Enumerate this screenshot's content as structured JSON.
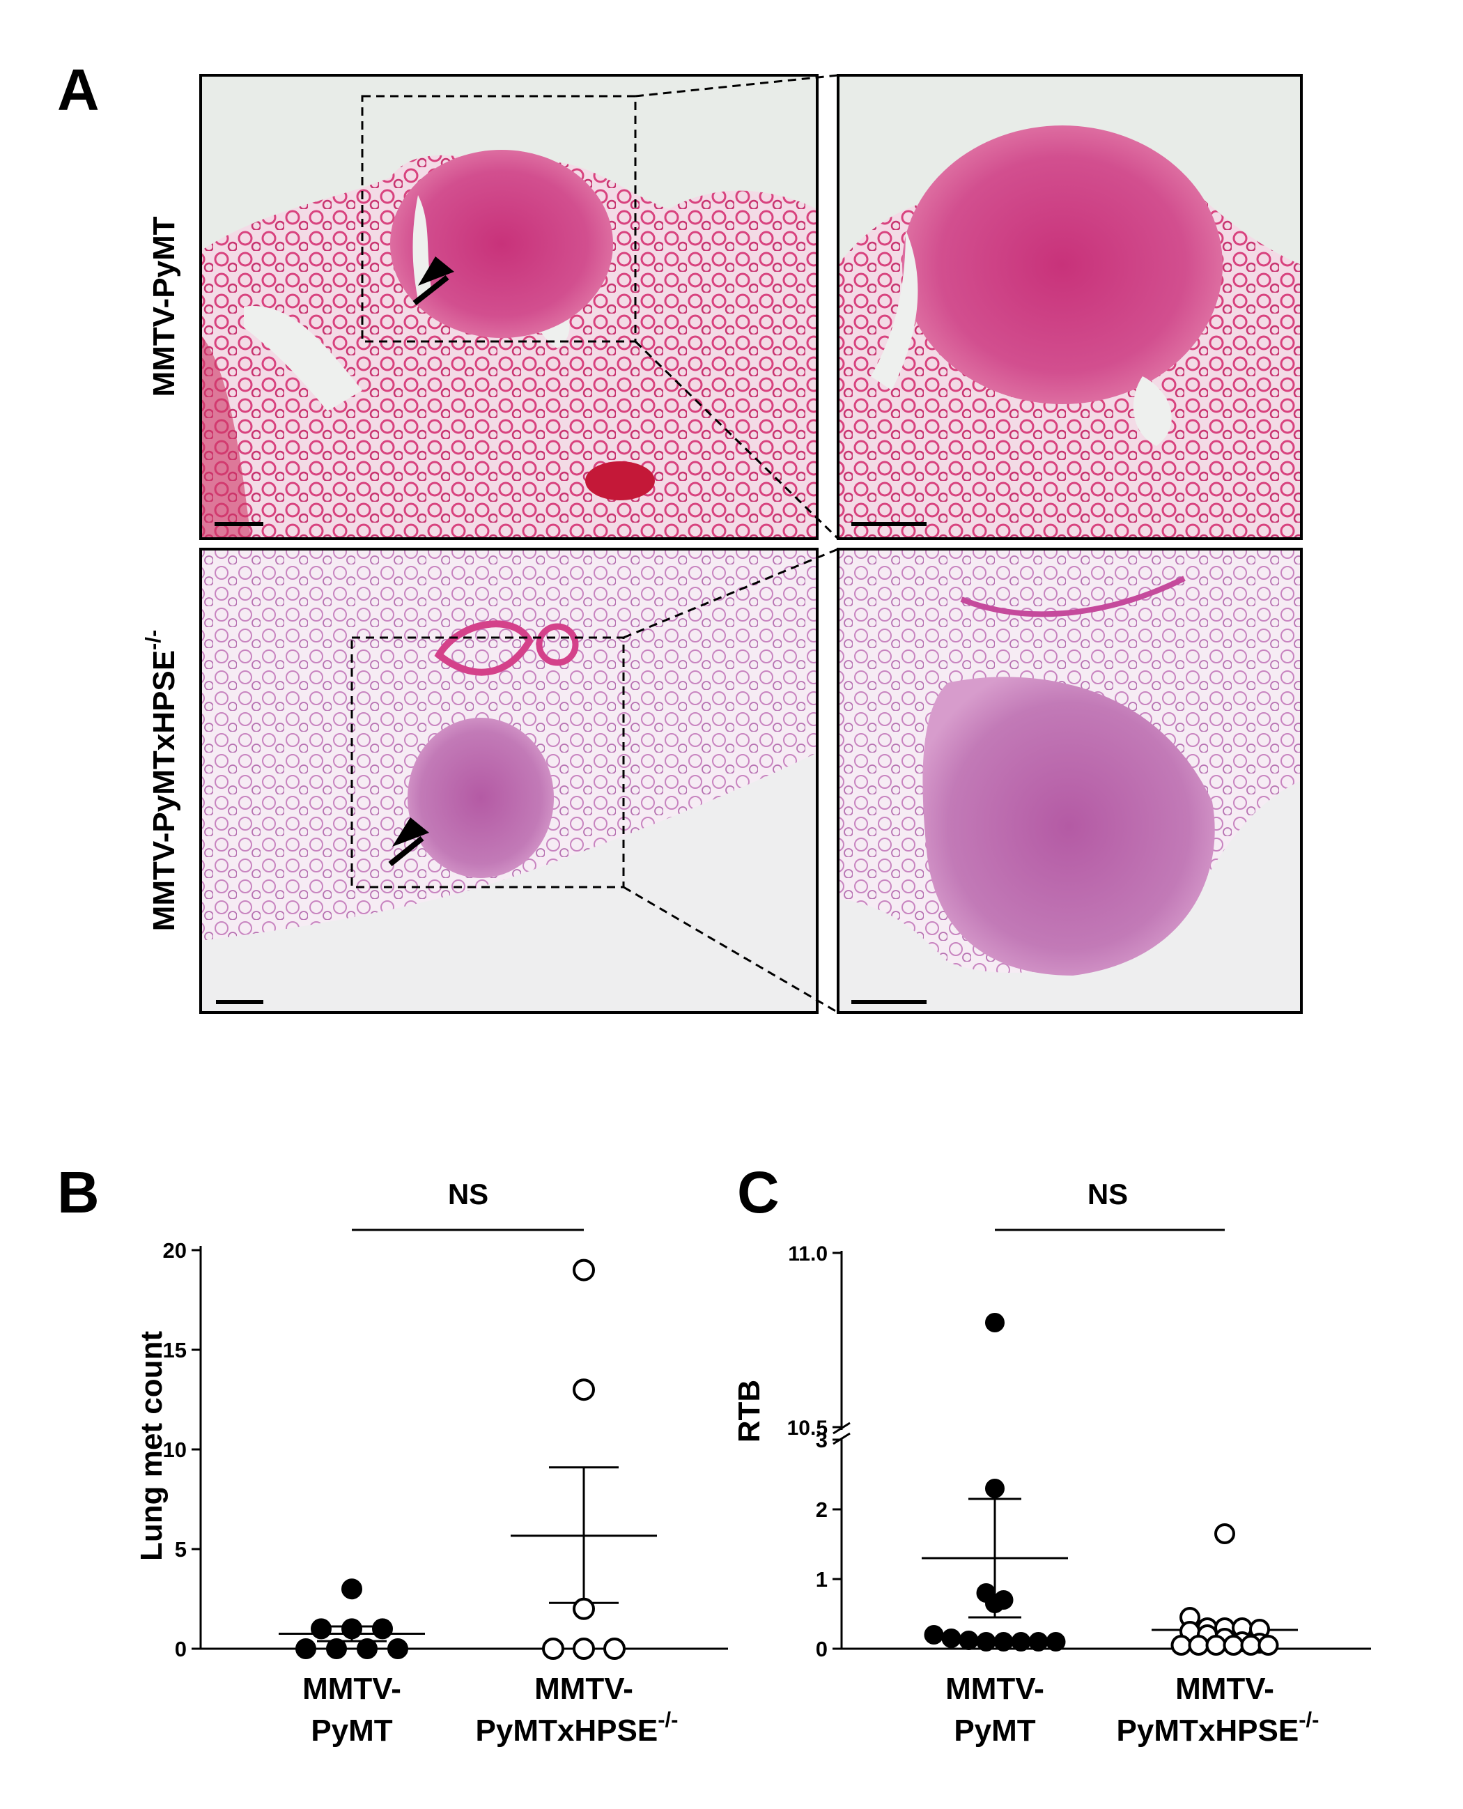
{
  "panel_a": {
    "label": "A",
    "row_labels": [
      "MMTV-PyMT",
      "MMTV-PyMTxHPSE",
      "-/-"
    ]
  },
  "panel_b": {
    "label": "B",
    "significance": "NS",
    "ylabel": "Lung met count",
    "yticks": [
      "0",
      "5",
      "10",
      "15",
      "20"
    ],
    "categories": [
      {
        "line1": "MMTV-",
        "line2": "PyMT",
        "sup": ""
      },
      {
        "line1": "MMTV-",
        "line2": "PyMTxHPSE",
        "sup": "-/-"
      }
    ]
  },
  "panel_c": {
    "label": "C",
    "significance": "NS",
    "ylabel": "RTB",
    "yticks_lower": [
      "0",
      "1",
      "2",
      "3"
    ],
    "yticks_upper": [
      "10.5",
      "11.0"
    ],
    "categories": [
      {
        "line1": "MMTV-",
        "line2": "PyMT",
        "sup": ""
      },
      {
        "line1": "MMTV-",
        "line2": "PyMTxHPSE",
        "sup": "-/-"
      }
    ]
  },
  "chart_data": [
    {
      "type": "scatter",
      "panel": "B",
      "title": "",
      "ylabel": "Lung met count",
      "ylim": [
        0,
        20
      ],
      "categories": [
        "MMTV-PyMT",
        "MMTV-PyMTxHPSE-/-"
      ],
      "series": [
        {
          "values": [
            3,
            1,
            1,
            1,
            0,
            0,
            0,
            0
          ],
          "mean": 0.75,
          "sem_low": 0.38,
          "sem_high": 1.12,
          "marker": "filled"
        },
        {
          "values": [
            19,
            13,
            2,
            0,
            0,
            0
          ],
          "mean": 5.67,
          "sem_low": 2.3,
          "sem_high": 9.1,
          "marker": "open"
        }
      ],
      "annotation": "NS"
    },
    {
      "type": "scatter",
      "panel": "C",
      "title": "",
      "ylabel": "RTB",
      "ylim": [
        0,
        11.0
      ],
      "axis_break": [
        3,
        10.5
      ],
      "categories": [
        "MMTV-PyMT",
        "MMTV-PyMTxHPSE-/-"
      ],
      "series": [
        {
          "values": [
            10.8,
            2.3,
            0.8,
            0.7,
            0.65,
            0.2,
            0.15,
            0.12,
            0.1,
            0.1,
            0.1,
            0.1,
            0.1
          ],
          "mean": 1.3,
          "sem_low": 0.45,
          "sem_high": 2.15,
          "marker": "filled"
        },
        {
          "values": [
            1.65,
            0.45,
            0.3,
            0.3,
            0.3,
            0.28,
            0.25,
            0.2,
            0.15,
            0.1,
            0.08,
            0.05,
            0.05,
            0.05,
            0.05,
            0.05,
            0.05
          ],
          "mean": 0.27,
          "sem_low": 0.2,
          "sem_high": 0.34,
          "marker": "open"
        }
      ],
      "annotation": "NS"
    }
  ]
}
